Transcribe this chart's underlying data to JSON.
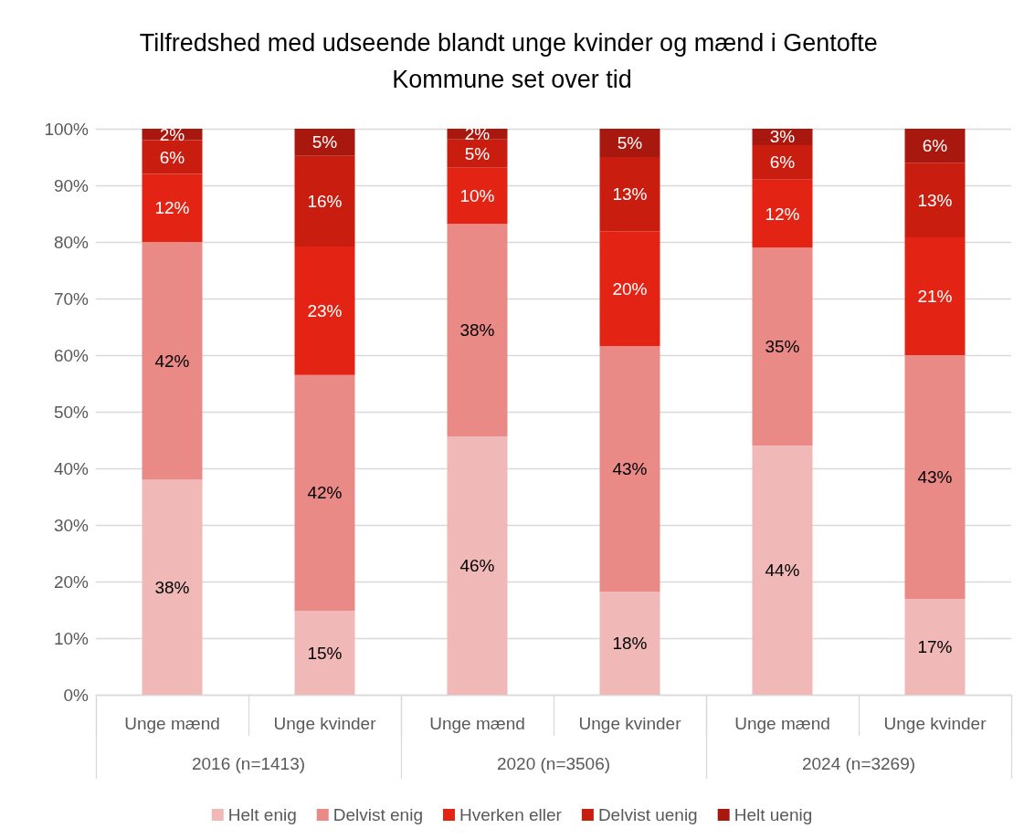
{
  "chart_data": {
    "type": "bar",
    "stacked": true,
    "title": "Tilfredshed med udseende blandt unge kvinder og mænd i Gentofte Kommune set over tid",
    "categories": [
      "Unge mænd",
      "Unge kvinder",
      "Unge mænd",
      "Unge kvinder",
      "Unge mænd",
      "Unge kvinder"
    ],
    "annotations": [
      "2016 (n=1413)",
      "2020 (n=3506)",
      "2024 (n=3269)"
    ],
    "series": [
      {
        "name": "Helt enig",
        "color": "#f0b8b6",
        "values": [
          38,
          14.8,
          45.6,
          18.2,
          44,
          16.9
        ],
        "value_labels": [
          "38%",
          "15%",
          "46%",
          "18%",
          "44%",
          "17%"
        ]
      },
      {
        "name": "Delvist enig",
        "color": "#e98a86",
        "values": [
          42,
          41.7,
          37.6,
          43.4,
          35,
          43.1
        ],
        "value_labels": [
          "42%",
          "42%",
          "38%",
          "43%",
          "35%",
          "43%"
        ]
      },
      {
        "name": "Hverken eller",
        "color": "#e32313",
        "values": [
          12,
          22.7,
          9.9,
          20.3,
          12,
          20.8
        ],
        "value_labels": [
          "12%",
          "23%",
          "10%",
          "20%",
          "12%",
          "21%"
        ]
      },
      {
        "name": "Delvist uenig",
        "color": "#c91d10",
        "values": [
          6,
          16,
          5,
          13.1,
          6.1,
          13.2
        ],
        "value_labels": [
          "6%",
          "16%",
          "5%",
          "13%",
          "6%",
          "13%"
        ]
      },
      {
        "name": "Helt uenig",
        "color": "#a9180e",
        "values": [
          2,
          4.8,
          1.9,
          5,
          2.9,
          6
        ],
        "value_labels": [
          "2%",
          "5%",
          "2%",
          "5%",
          "3%",
          "6%"
        ]
      }
    ],
    "ylim": [
      0,
      100
    ],
    "yticks": [
      {
        "value": 0,
        "label": "0%"
      },
      {
        "value": 10,
        "label": "10%"
      },
      {
        "value": 20,
        "label": "20%"
      },
      {
        "value": 30,
        "label": "30%"
      },
      {
        "value": 40,
        "label": "40%"
      },
      {
        "value": 50,
        "label": "50%"
      },
      {
        "value": 60,
        "label": "60%"
      },
      {
        "value": 70,
        "label": "70%"
      },
      {
        "value": 80,
        "label": "80%"
      },
      {
        "value": 90,
        "label": "90%"
      },
      {
        "value": 100,
        "label": "100%"
      }
    ],
    "grid": "y",
    "legend": "bottom"
  }
}
